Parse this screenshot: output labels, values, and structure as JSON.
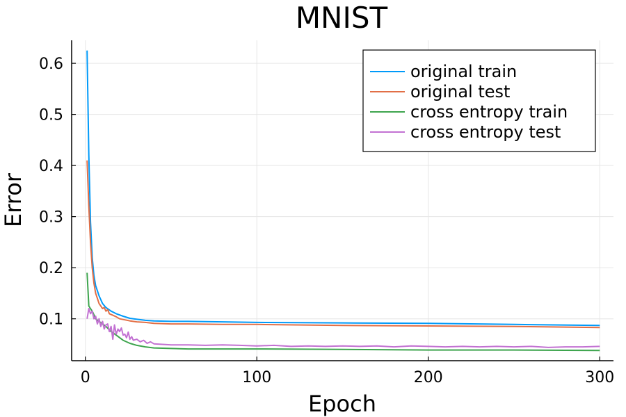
{
  "chart_data": {
    "type": "line",
    "title": "MNIST",
    "xlabel": "Epoch",
    "ylabel": "Error",
    "xlim": [
      -8,
      308
    ],
    "ylim": [
      0.018,
      0.645
    ],
    "xticks": [
      0,
      100,
      200,
      300
    ],
    "yticks": [
      0.1,
      0.2,
      0.3,
      0.4,
      0.5,
      0.6
    ],
    "grid": true,
    "legend_position": "top-right",
    "series": [
      {
        "name": "original train",
        "color": "#009af9",
        "points": [
          [
            1,
            0.625
          ],
          [
            2,
            0.42
          ],
          [
            3,
            0.29
          ],
          [
            4,
            0.22
          ],
          [
            5,
            0.185
          ],
          [
            6,
            0.165
          ],
          [
            8,
            0.145
          ],
          [
            10,
            0.13
          ],
          [
            12,
            0.122
          ],
          [
            15,
            0.115
          ],
          [
            18,
            0.11
          ],
          [
            22,
            0.105
          ],
          [
            26,
            0.101
          ],
          [
            30,
            0.099
          ],
          [
            35,
            0.097
          ],
          [
            40,
            0.096
          ],
          [
            50,
            0.095
          ],
          [
            60,
            0.095
          ],
          [
            80,
            0.094
          ],
          [
            100,
            0.093
          ],
          [
            150,
            0.092
          ],
          [
            200,
            0.091
          ],
          [
            250,
            0.089
          ],
          [
            300,
            0.087
          ]
        ]
      },
      {
        "name": "original test",
        "color": "#e26f46",
        "points": [
          [
            1,
            0.41
          ],
          [
            2,
            0.32
          ],
          [
            3,
            0.25
          ],
          [
            4,
            0.2
          ],
          [
            5,
            0.17
          ],
          [
            6,
            0.15
          ],
          [
            7,
            0.14
          ],
          [
            8,
            0.13
          ],
          [
            9,
            0.125
          ],
          [
            10,
            0.12
          ],
          [
            11,
            0.122
          ],
          [
            12,
            0.115
          ],
          [
            13,
            0.118
          ],
          [
            14,
            0.11
          ],
          [
            16,
            0.107
          ],
          [
            18,
            0.104
          ],
          [
            20,
            0.1
          ],
          [
            23,
            0.098
          ],
          [
            26,
            0.096
          ],
          [
            30,
            0.094
          ],
          [
            35,
            0.093
          ],
          [
            40,
            0.091
          ],
          [
            50,
            0.09
          ],
          [
            60,
            0.09
          ],
          [
            80,
            0.089
          ],
          [
            100,
            0.089
          ],
          [
            150,
            0.087
          ],
          [
            200,
            0.086
          ],
          [
            250,
            0.085
          ],
          [
            300,
            0.083
          ]
        ]
      },
      {
        "name": "cross entropy train",
        "color": "#3da44d",
        "points": [
          [
            1,
            0.19
          ],
          [
            2,
            0.125
          ],
          [
            3,
            0.12
          ],
          [
            4,
            0.115
          ],
          [
            5,
            0.108
          ],
          [
            6,
            0.1
          ],
          [
            8,
            0.095
          ],
          [
            10,
            0.09
          ],
          [
            12,
            0.085
          ],
          [
            15,
            0.075
          ],
          [
            18,
            0.068
          ],
          [
            22,
            0.058
          ],
          [
            26,
            0.052
          ],
          [
            30,
            0.048
          ],
          [
            35,
            0.045
          ],
          [
            40,
            0.043
          ],
          [
            50,
            0.042
          ],
          [
            60,
            0.041
          ],
          [
            80,
            0.041
          ],
          [
            100,
            0.041
          ],
          [
            150,
            0.04
          ],
          [
            200,
            0.039
          ],
          [
            250,
            0.039
          ],
          [
            300,
            0.038
          ]
        ]
      },
      {
        "name": "cross entropy test",
        "color": "#c271d2",
        "points": [
          [
            1,
            0.1
          ],
          [
            2,
            0.12
          ],
          [
            3,
            0.11
          ],
          [
            4,
            0.115
          ],
          [
            5,
            0.1
          ],
          [
            6,
            0.105
          ],
          [
            7,
            0.09
          ],
          [
            8,
            0.1
          ],
          [
            9,
            0.085
          ],
          [
            10,
            0.095
          ],
          [
            11,
            0.08
          ],
          [
            12,
            0.088
          ],
          [
            13,
            0.09
          ],
          [
            14,
            0.075
          ],
          [
            15,
            0.085
          ],
          [
            16,
            0.06
          ],
          [
            17,
            0.088
          ],
          [
            18,
            0.07
          ],
          [
            19,
            0.08
          ],
          [
            20,
            0.075
          ],
          [
            21,
            0.082
          ],
          [
            22,
            0.068
          ],
          [
            23,
            0.07
          ],
          [
            24,
            0.063
          ],
          [
            25,
            0.074
          ],
          [
            26,
            0.06
          ],
          [
            27,
            0.065
          ],
          [
            28,
            0.058
          ],
          [
            30,
            0.06
          ],
          [
            32,
            0.055
          ],
          [
            34,
            0.058
          ],
          [
            36,
            0.052
          ],
          [
            38,
            0.055
          ],
          [
            40,
            0.051
          ],
          [
            45,
            0.05
          ],
          [
            50,
            0.049
          ],
          [
            60,
            0.049
          ],
          [
            70,
            0.048
          ],
          [
            80,
            0.049
          ],
          [
            90,
            0.048
          ],
          [
            100,
            0.047
          ],
          [
            110,
            0.048
          ],
          [
            120,
            0.046
          ],
          [
            130,
            0.047
          ],
          [
            140,
            0.046
          ],
          [
            150,
            0.047
          ],
          [
            160,
            0.046
          ],
          [
            170,
            0.047
          ],
          [
            180,
            0.045
          ],
          [
            190,
            0.047
          ],
          [
            200,
            0.046
          ],
          [
            210,
            0.045
          ],
          [
            220,
            0.046
          ],
          [
            230,
            0.045
          ],
          [
            240,
            0.046
          ],
          [
            250,
            0.045
          ],
          [
            260,
            0.046
          ],
          [
            270,
            0.044
          ],
          [
            280,
            0.045
          ],
          [
            290,
            0.045
          ],
          [
            300,
            0.046
          ]
        ]
      }
    ]
  }
}
